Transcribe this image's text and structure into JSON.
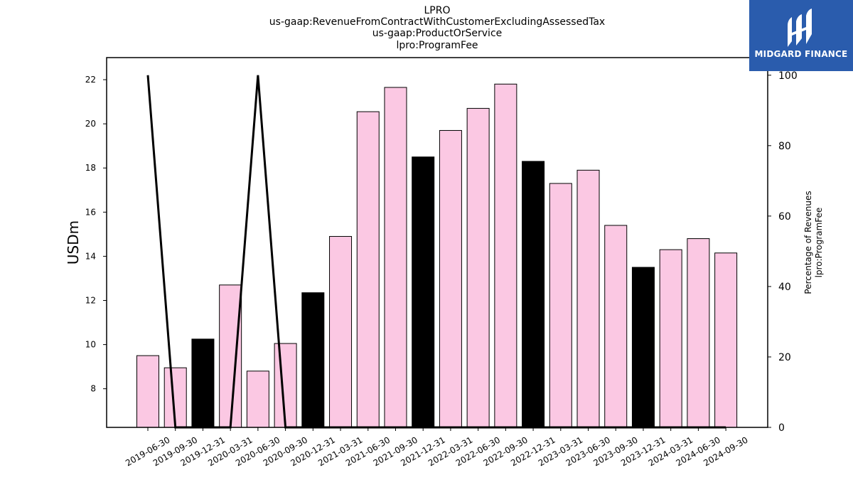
{
  "title_lines": [
    "LPRO",
    "us-gaap:RevenueFromContractWithCustomerExcludingAssessedTax",
    "us-gaap:ProductOrService",
    "lpro:ProgramFee"
  ],
  "logo": {
    "text": "MIDGARD FINANCE",
    "bg_color": "#2a5cad"
  },
  "chart_data": {
    "type": "bar",
    "categories": [
      "2019-06-30",
      "2019-09-30",
      "2019-12-31",
      "2020-03-31",
      "2020-06-30",
      "2020-09-30",
      "2020-12-31",
      "2021-03-31",
      "2021-06-30",
      "2021-09-30",
      "2021-12-31",
      "2022-03-31",
      "2022-06-30",
      "2022-09-30",
      "2022-12-31",
      "2023-03-31",
      "2023-06-30",
      "2023-09-30",
      "2023-12-31",
      "2024-03-31",
      "2024-06-30",
      "2024-09-30"
    ],
    "values": [
      9.5,
      8.95,
      10.25,
      12.7,
      8.8,
      10.05,
      12.35,
      14.9,
      20.55,
      21.65,
      18.5,
      19.7,
      20.7,
      21.8,
      18.3,
      17.3,
      17.9,
      15.4,
      13.5,
      14.3,
      14.8,
      14.15
    ],
    "bar_kind": [
      "q",
      "q",
      "fy",
      "q",
      "q",
      "q",
      "fy",
      "q",
      "q",
      "q",
      "fy",
      "q",
      "q",
      "q",
      "fy",
      "q",
      "q",
      "q",
      "fy",
      "q",
      "q",
      "q"
    ],
    "bar_colors": {
      "q": "#fbc8e3",
      "fy": "#000000"
    },
    "line_series": {
      "values": [
        100,
        0,
        0,
        0,
        100,
        0,
        0,
        0,
        0,
        0,
        0,
        0,
        0,
        0,
        0,
        0,
        0,
        0,
        0,
        0,
        0,
        0
      ],
      "color": "#000000"
    },
    "ylabel": "USDm",
    "ylim": [
      6.25,
      23
    ],
    "yticks": [
      8,
      10,
      12,
      14,
      16,
      18,
      20,
      22
    ],
    "y2label": [
      "Percentage of Revenues",
      "lpro:ProgramFee"
    ],
    "y2lim": [
      0,
      105
    ],
    "y2ticks": [
      0,
      20,
      40,
      60,
      80,
      100
    ],
    "grid": false
  }
}
